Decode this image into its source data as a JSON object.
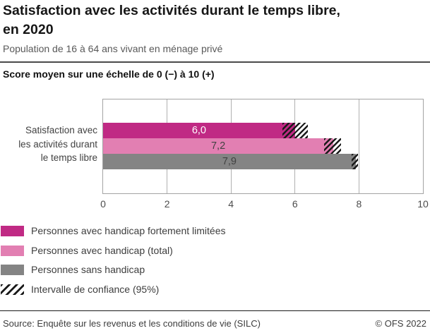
{
  "header": {
    "title": "Satisfaction avec les activités durant le temps libre, en 2020",
    "title_lines": [
      "Satisfaction avec les activités durant le temps libre,",
      "en 2020"
    ],
    "subtitle": "Population de 16 à 64 ans vivant en ménage privé",
    "axis_unit_note": "Score moyen sur une échelle de 0 (−) à 10 (+)"
  },
  "chart_data": {
    "type": "bar",
    "orientation": "horizontal",
    "title": "Satisfaction avec les activités durant le temps libre, en 2020",
    "xlabel": "Score moyen sur une échelle de 0 (−) à 10 (+)",
    "xlim": [
      0,
      10
    ],
    "x_ticks": [
      0,
      2,
      4,
      6,
      8,
      10
    ],
    "x_tick_labels": [
      "0",
      "2",
      "4",
      "6",
      "8",
      "10"
    ],
    "grid": true,
    "legend_position": "bottom-left",
    "category_label": "Satisfaction avec les activités durant le temps libre",
    "category_label_lines": [
      "Satisfaction avec",
      "les activités durant",
      "le temps libre"
    ],
    "series": [
      {
        "id": "handicap-fortement-limitees",
        "name": "Personnes avec handicap fortement limitées",
        "value": 6.0,
        "value_label": "6,0",
        "ci_low": 5.6,
        "ci_high": 6.4,
        "color": "#c02a84",
        "value_label_color": "#ffffff"
      },
      {
        "id": "handicap-total",
        "name": "Personnes avec handicap (total)",
        "value": 7.2,
        "value_label": "7,2",
        "ci_low": 6.9,
        "ci_high": 7.45,
        "color": "#e27fb2",
        "value_label_color": "#424242"
      },
      {
        "id": "sans-handicap",
        "name": "Personnes sans handicap",
        "value": 7.9,
        "value_label": "7,9",
        "ci_low": 7.78,
        "ci_high": 7.97,
        "color": "#848484",
        "value_label_color": "#424242"
      }
    ],
    "confidence_interval_label": "Intervalle de confiance (95%)"
  },
  "legend": {
    "items": [
      {
        "label": "Personnes avec handicap fortement limitées",
        "color": "#c02a84",
        "swatch": "solid"
      },
      {
        "label": "Personnes avec handicap (total)",
        "color": "#e27fb2",
        "swatch": "solid"
      },
      {
        "label": "Personnes sans handicap",
        "color": "#848484",
        "swatch": "solid"
      },
      {
        "label": "Intervalle de confiance (95%)",
        "color": "#1a1a1a",
        "swatch": "hatch"
      }
    ]
  },
  "footer": {
    "source": "Source: Enquête sur les revenus et les conditions de vie (SILC)",
    "copyright": "© OFS 2022"
  }
}
